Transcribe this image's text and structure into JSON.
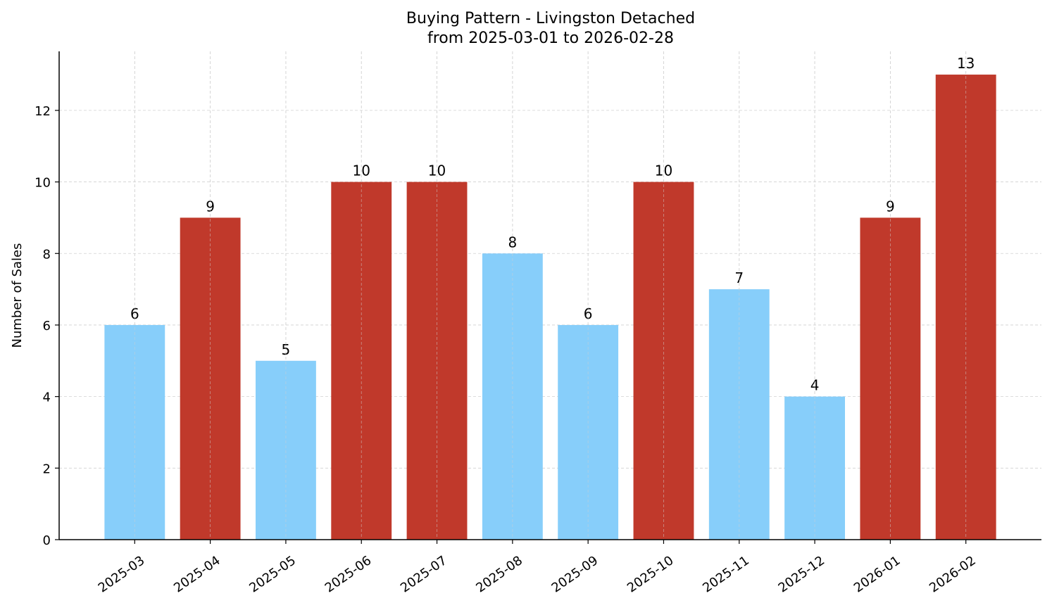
{
  "chart_data": {
    "type": "bar",
    "title": "Buying Pattern - Livingston Detached",
    "subtitle": "from 2025-03-01 to 2026-02-28",
    "xlabel": "",
    "ylabel": "Number of Sales",
    "categories": [
      "2025-03",
      "2025-04",
      "2025-05",
      "2025-06",
      "2025-07",
      "2025-08",
      "2025-09",
      "2025-10",
      "2025-11",
      "2025-12",
      "2026-01",
      "2026-02"
    ],
    "values": [
      6,
      9,
      5,
      10,
      10,
      8,
      6,
      10,
      7,
      4,
      9,
      13
    ],
    "bar_colors": [
      "#87CEFA",
      "#C0392B",
      "#87CEFA",
      "#C0392B",
      "#C0392B",
      "#87CEFA",
      "#87CEFA",
      "#C0392B",
      "#87CEFA",
      "#87CEFA",
      "#C0392B",
      "#C0392B"
    ],
    "ylim": [
      0,
      13.65
    ],
    "yticks": [
      0,
      2,
      4,
      6,
      8,
      10,
      12
    ],
    "grid": true,
    "data_labels": true
  }
}
